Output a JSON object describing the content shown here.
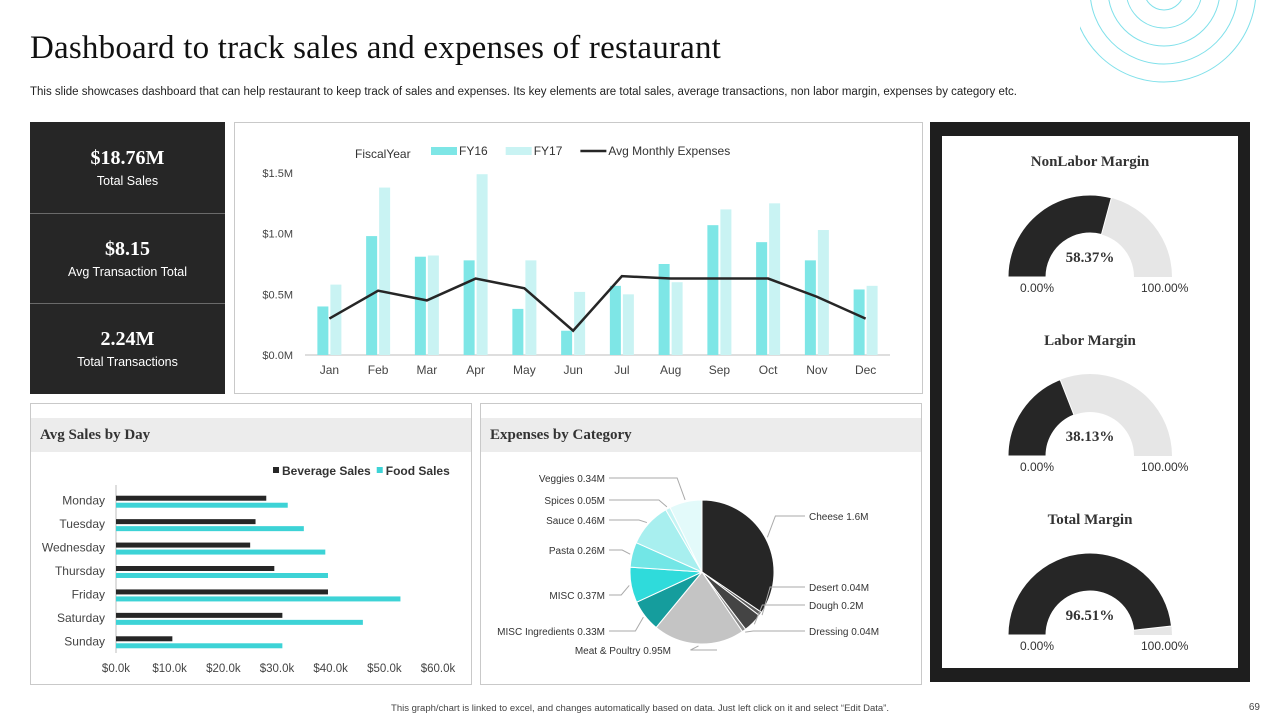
{
  "slide": {
    "title": "Dashboard to track sales and expenses of restaurant",
    "subtitle": "This slide showcases dashboard that can help restaurant to keep track of sales and expenses. Its key elements are total sales, average transactions, non labor margin, expenses by category etc.",
    "footer": "This graph/chart is linked to excel, and changes automatically based on data. Just left click on it and select “Edit Data”.",
    "page_number": "69"
  },
  "kpis": [
    {
      "value": "$18.76M",
      "label": "Total Sales"
    },
    {
      "value": "$8.15",
      "label": "Avg Transaction Total"
    },
    {
      "value": "2.24M",
      "label": "Total Transactions"
    }
  ],
  "colors": {
    "dark": "#262626",
    "fy16": "#7ee6e6",
    "fy17": "#c9f3f3",
    "food": "#3dd3d6",
    "gauge_fill": "#262626",
    "gauge_rest": "#e6e6e6"
  },
  "panels": {
    "avg_sales_title": "Avg Sales by Day",
    "expenses_title": "Expenses by Category"
  },
  "gauges": [
    {
      "title": "NonLabor Margin",
      "value_label": "58.37%",
      "value": 0.5837,
      "min_label": "0.00%",
      "max_label": "100.00%"
    },
    {
      "title": "Labor Margin",
      "value_label": "38.13%",
      "value": 0.3813,
      "min_label": "0.00%",
      "max_label": "100.00%"
    },
    {
      "title": "Total Margin",
      "value_label": "96.51%",
      "value": 0.9651,
      "min_label": "0.00%",
      "max_label": "100.00%"
    }
  ],
  "chart_data": [
    {
      "type": "bar",
      "legend_title": "FiscalYear",
      "categories": [
        "Jan",
        "Feb",
        "Mar",
        "Apr",
        "May",
        "Jun",
        "Jul",
        "Aug",
        "Sep",
        "Oct",
        "Nov",
        "Dec"
      ],
      "series": [
        {
          "name": "FY16",
          "kind": "bar",
          "color": "#7ee6e6",
          "values": [
            0.4,
            0.98,
            0.81,
            0.78,
            0.38,
            0.2,
            0.57,
            0.75,
            1.07,
            0.93,
            0.78,
            0.54
          ]
        },
        {
          "name": "FY17",
          "kind": "bar",
          "color": "#c9f3f3",
          "values": [
            0.58,
            1.38,
            0.82,
            1.49,
            0.78,
            0.52,
            0.5,
            0.6,
            1.2,
            1.25,
            1.03,
            0.57
          ]
        },
        {
          "name": "Avg Monthly Expenses",
          "kind": "line",
          "color": "#262626",
          "values": [
            0.3,
            0.53,
            0.45,
            0.63,
            0.55,
            0.2,
            0.65,
            0.63,
            0.63,
            0.63,
            0.48,
            0.3
          ]
        }
      ],
      "ylim": [
        0,
        1.5
      ],
      "yticks": [
        {
          "v": 0,
          "label": "$0.0M"
        },
        {
          "v": 0.5,
          "label": "$0.5M"
        },
        {
          "v": 1.0,
          "label": "$1.0M"
        },
        {
          "v": 1.5,
          "label": "$1.5M"
        }
      ],
      "grid": false,
      "legend": "top"
    },
    {
      "type": "bar",
      "orientation": "horizontal",
      "categories": [
        "Monday",
        "Tuesday",
        "Wednesday",
        "Thursday",
        "Friday",
        "Saturday",
        "Sunday"
      ],
      "series": [
        {
          "name": "Beverage Sales",
          "color": "#262626",
          "values": [
            28000,
            26000,
            25000,
            29500,
            39500,
            31000,
            10500
          ]
        },
        {
          "name": "Food Sales",
          "color": "#3dd3d6",
          "values": [
            32000,
            35000,
            39000,
            39500,
            53000,
            46000,
            31000
          ]
        }
      ],
      "xlim": [
        0,
        60000
      ],
      "xticks": [
        {
          "v": 0,
          "label": "$0.0k"
        },
        {
          "v": 10000,
          "label": "$10.0k"
        },
        {
          "v": 20000,
          "label": "$20.0k"
        },
        {
          "v": 30000,
          "label": "$30.0k"
        },
        {
          "v": 40000,
          "label": "$40.0k"
        },
        {
          "v": 50000,
          "label": "$50.0k"
        },
        {
          "v": 60000,
          "label": "$60.0k"
        }
      ],
      "legend": "top-right"
    },
    {
      "type": "pie",
      "slices": [
        {
          "label": "Cheese 1.6M",
          "value": 1.6,
          "color": "#262626"
        },
        {
          "label": "Desert 0.04M",
          "value": 0.04,
          "color": "#5a5a5a"
        },
        {
          "label": "Dough 0.2M",
          "value": 0.2,
          "color": "#444444"
        },
        {
          "label": "Dressing 0.04M",
          "value": 0.04,
          "color": "#8a8a8a"
        },
        {
          "label": "Meat & Poultry 0.95M",
          "value": 0.95,
          "color": "#c4c4c4"
        },
        {
          "label": "MISC  Ingredients 0.33M",
          "value": 0.33,
          "color": "#159d9d"
        },
        {
          "label": "MISC  0.37M",
          "value": 0.37,
          "color": "#2fdbdb"
        },
        {
          "label": "Pasta 0.26M",
          "value": 0.26,
          "color": "#72e6e6"
        },
        {
          "label": "Sauce 0.46M",
          "value": 0.46,
          "color": "#a8efef"
        },
        {
          "label": "Spices 0.05M",
          "value": 0.05,
          "color": "#c6f4f4"
        },
        {
          "label": "Veggies 0.34M",
          "value": 0.34,
          "color": "#e3fafa"
        }
      ]
    }
  ]
}
